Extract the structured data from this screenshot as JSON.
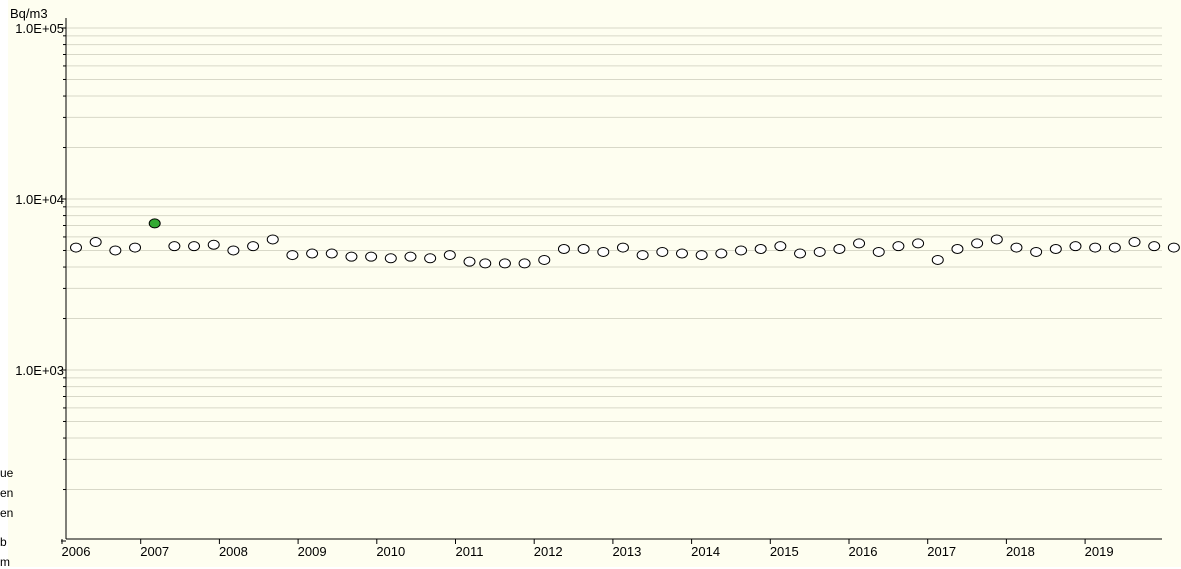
{
  "chart_data": {
    "type": "scatter",
    "title": "",
    "xlabel": "",
    "ylabel": "Bq/m3",
    "y_scale": "log",
    "ylim": [
      100,
      100000
    ],
    "xlim": [
      2005.9,
      2019.95
    ],
    "grid": true,
    "y_tick_labels": [
      "1.0E+05",
      "1.0E+04",
      "1.0E+03"
    ],
    "y_tick_values": [
      100000,
      10000,
      1000
    ],
    "x_tick_labels": [
      "2006",
      "2007",
      "2008",
      "2009",
      "2010",
      "2011",
      "2012",
      "2013",
      "2014",
      "2015",
      "2016",
      "2017",
      "2018",
      "2019"
    ],
    "x_tick_values": [
      2006,
      2007,
      2008,
      2009,
      2010,
      2011,
      2012,
      2013,
      2014,
      2015,
      2016,
      2017,
      2018,
      2019
    ],
    "marker_colors": {
      "open": "#ffffff",
      "highlight": "#33aa33"
    },
    "series": [
      {
        "marker": "open",
        "points": [
          {
            "x": 2006.0,
            "y": 5200
          },
          {
            "x": 2006.25,
            "y": 5600
          },
          {
            "x": 2006.5,
            "y": 5000
          },
          {
            "x": 2006.75,
            "y": 5200
          },
          {
            "x": 2007.25,
            "y": 5300
          },
          {
            "x": 2007.5,
            "y": 5300
          },
          {
            "x": 2007.75,
            "y": 5400
          },
          {
            "x": 2008.0,
            "y": 5000
          },
          {
            "x": 2008.25,
            "y": 5300
          },
          {
            "x": 2008.5,
            "y": 5800
          },
          {
            "x": 2008.75,
            "y": 4700
          },
          {
            "x": 2009.0,
            "y": 4800
          },
          {
            "x": 2009.25,
            "y": 4800
          },
          {
            "x": 2009.5,
            "y": 4600
          },
          {
            "x": 2009.75,
            "y": 4600
          },
          {
            "x": 2010.0,
            "y": 4500
          },
          {
            "x": 2010.25,
            "y": 4600
          },
          {
            "x": 2010.5,
            "y": 4500
          },
          {
            "x": 2010.75,
            "y": 4700
          },
          {
            "x": 2011.0,
            "y": 4300
          },
          {
            "x": 2011.2,
            "y": 4200
          },
          {
            "x": 2011.45,
            "y": 4200
          },
          {
            "x": 2011.7,
            "y": 4200
          },
          {
            "x": 2011.95,
            "y": 4400
          },
          {
            "x": 2012.2,
            "y": 5100
          },
          {
            "x": 2012.45,
            "y": 5100
          },
          {
            "x": 2012.7,
            "y": 4900
          },
          {
            "x": 2012.95,
            "y": 5200
          },
          {
            "x": 2013.2,
            "y": 4700
          },
          {
            "x": 2013.45,
            "y": 4900
          },
          {
            "x": 2013.7,
            "y": 4800
          },
          {
            "x": 2013.95,
            "y": 4700
          },
          {
            "x": 2014.2,
            "y": 4800
          },
          {
            "x": 2014.45,
            "y": 5000
          },
          {
            "x": 2014.7,
            "y": 5100
          },
          {
            "x": 2014.95,
            "y": 5300
          },
          {
            "x": 2015.2,
            "y": 4800
          },
          {
            "x": 2015.45,
            "y": 4900
          },
          {
            "x": 2015.7,
            "y": 5100
          },
          {
            "x": 2015.95,
            "y": 5500
          },
          {
            "x": 2016.2,
            "y": 4900
          },
          {
            "x": 2016.45,
            "y": 5300
          },
          {
            "x": 2016.7,
            "y": 5500
          },
          {
            "x": 2016.95,
            "y": 4400
          },
          {
            "x": 2017.2,
            "y": 5100
          },
          {
            "x": 2017.45,
            "y": 5500
          },
          {
            "x": 2017.7,
            "y": 5800
          },
          {
            "x": 2017.95,
            "y": 5200
          },
          {
            "x": 2018.2,
            "y": 4900
          },
          {
            "x": 2018.45,
            "y": 5100
          },
          {
            "x": 2018.7,
            "y": 5300
          },
          {
            "x": 2018.95,
            "y": 5200
          },
          {
            "x": 2019.2,
            "y": 5200
          },
          {
            "x": 2019.45,
            "y": 5600
          },
          {
            "x": 2019.7,
            "y": 5300
          },
          {
            "x": 2019.95,
            "y": 5200
          }
        ]
      },
      {
        "marker": "highlight",
        "points": [
          {
            "x": 2007.0,
            "y": 7200
          }
        ]
      }
    ]
  },
  "left_edge_fragments": [
    "ue",
    "en",
    "en",
    "b",
    "m"
  ]
}
